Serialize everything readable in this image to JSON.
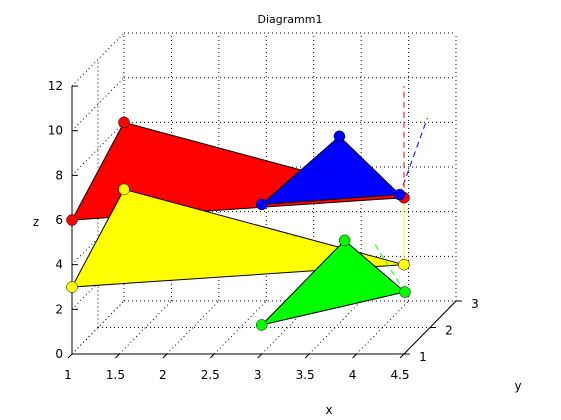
{
  "chart_data": {
    "type": "3d-patch",
    "title": "Diagramm1",
    "xlabel": "x",
    "ylabel": "y",
    "zlabel": "z",
    "xlim": [
      1,
      4.5
    ],
    "ylim": [
      1,
      3
    ],
    "zlim": [
      0,
      12
    ],
    "xticks": [
      "1",
      "1.5",
      "2",
      "2.5",
      "3",
      "3.5",
      "4",
      "4.5"
    ],
    "yticks": [
      "1",
      "2",
      "3"
    ],
    "zticks": [
      "0",
      "2",
      "4",
      "6",
      "8",
      "10",
      "12"
    ],
    "grid": "on",
    "legend": "none",
    "triangles": [
      {
        "color": "#ff0000",
        "vertices": [
          [
            1,
            1,
            6
          ],
          [
            1,
            3,
            8
          ],
          [
            4.5,
            1,
            7
          ]
        ]
      },
      {
        "color": "#ffff00",
        "vertices": [
          [
            1,
            1,
            3
          ],
          [
            1,
            3,
            5
          ],
          [
            4.5,
            1,
            4
          ]
        ]
      },
      {
        "color": "#0000ff",
        "vertices": [
          [
            3,
            1,
            6.7
          ],
          [
            3.6,
            1.8,
            8.8
          ],
          [
            4.4,
            1.2,
            6.9
          ]
        ]
      },
      {
        "color": "#00ff00",
        "vertices": [
          [
            3,
            1,
            1.3
          ],
          [
            3.6,
            2,
            3.9
          ],
          [
            4.4,
            1.4,
            2.3
          ]
        ]
      }
    ],
    "lines": [
      {
        "color": "#0000ff",
        "style": "dashed",
        "from": [
          4.4,
          1.2,
          6.9
        ],
        "to": [
          4.5,
          1.9,
          9.5
        ]
      },
      {
        "color": "#ff0000",
        "style": "dashed",
        "from": [
          4.5,
          1,
          7
        ],
        "to": [
          4.5,
          1,
          12
        ]
      },
      {
        "color": "#ffff00",
        "style": "solid",
        "from": [
          4.5,
          1,
          7
        ],
        "to": [
          4.5,
          1,
          4
        ]
      },
      {
        "color": "#00ff00",
        "style": "dashed",
        "from": [
          4.4,
          1.4,
          2.3
        ],
        "to": [
          4.0,
          1.7,
          4.1
        ]
      }
    ]
  }
}
